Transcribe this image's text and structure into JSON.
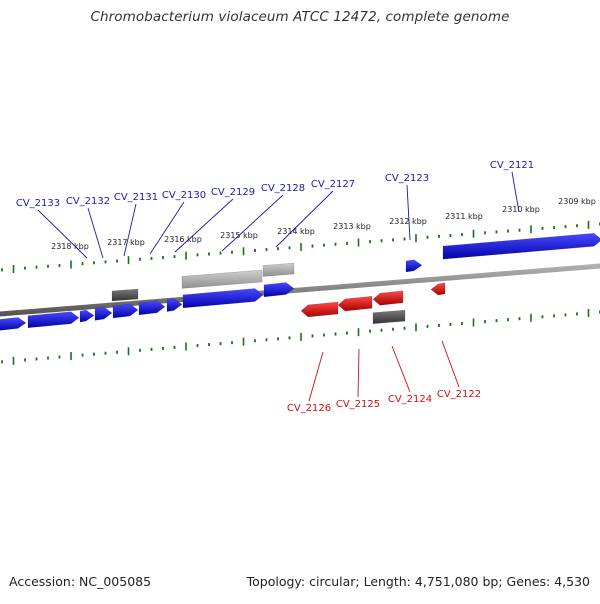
{
  "title": "Chromobacterium violaceum ATCC 12472, complete genome",
  "footer": {
    "accession": "Accession: NC_005085",
    "summary": "Topology: circular; Length: 4,751,080 bp; Genes: 4,530"
  },
  "colors": {
    "forward": "#1010ee",
    "reverse": "#ee1010",
    "ticks": "#117711",
    "backbone": "#808080",
    "dark_feature": "#555555",
    "light_feature": "#aaaaaa"
  },
  "scale_labels": {
    "top": [
      "2318 kbp",
      "2317 kbp",
      "2316 kbp",
      "2315 kbp",
      "2314 kbp",
      "2313 kbp",
      "2312 kbp",
      "2311 kbp",
      "2310 kbp",
      "2309 kbp"
    ]
  },
  "genes": {
    "forward": [
      "CV_2133",
      "CV_2132",
      "CV_2131",
      "CV_2130",
      "CV_2129",
      "CV_2128",
      "CV_2127",
      "CV_2123",
      "CV_2121"
    ],
    "reverse": [
      "CV_2126",
      "CV_2125",
      "CV_2124",
      "CV_2122"
    ]
  }
}
